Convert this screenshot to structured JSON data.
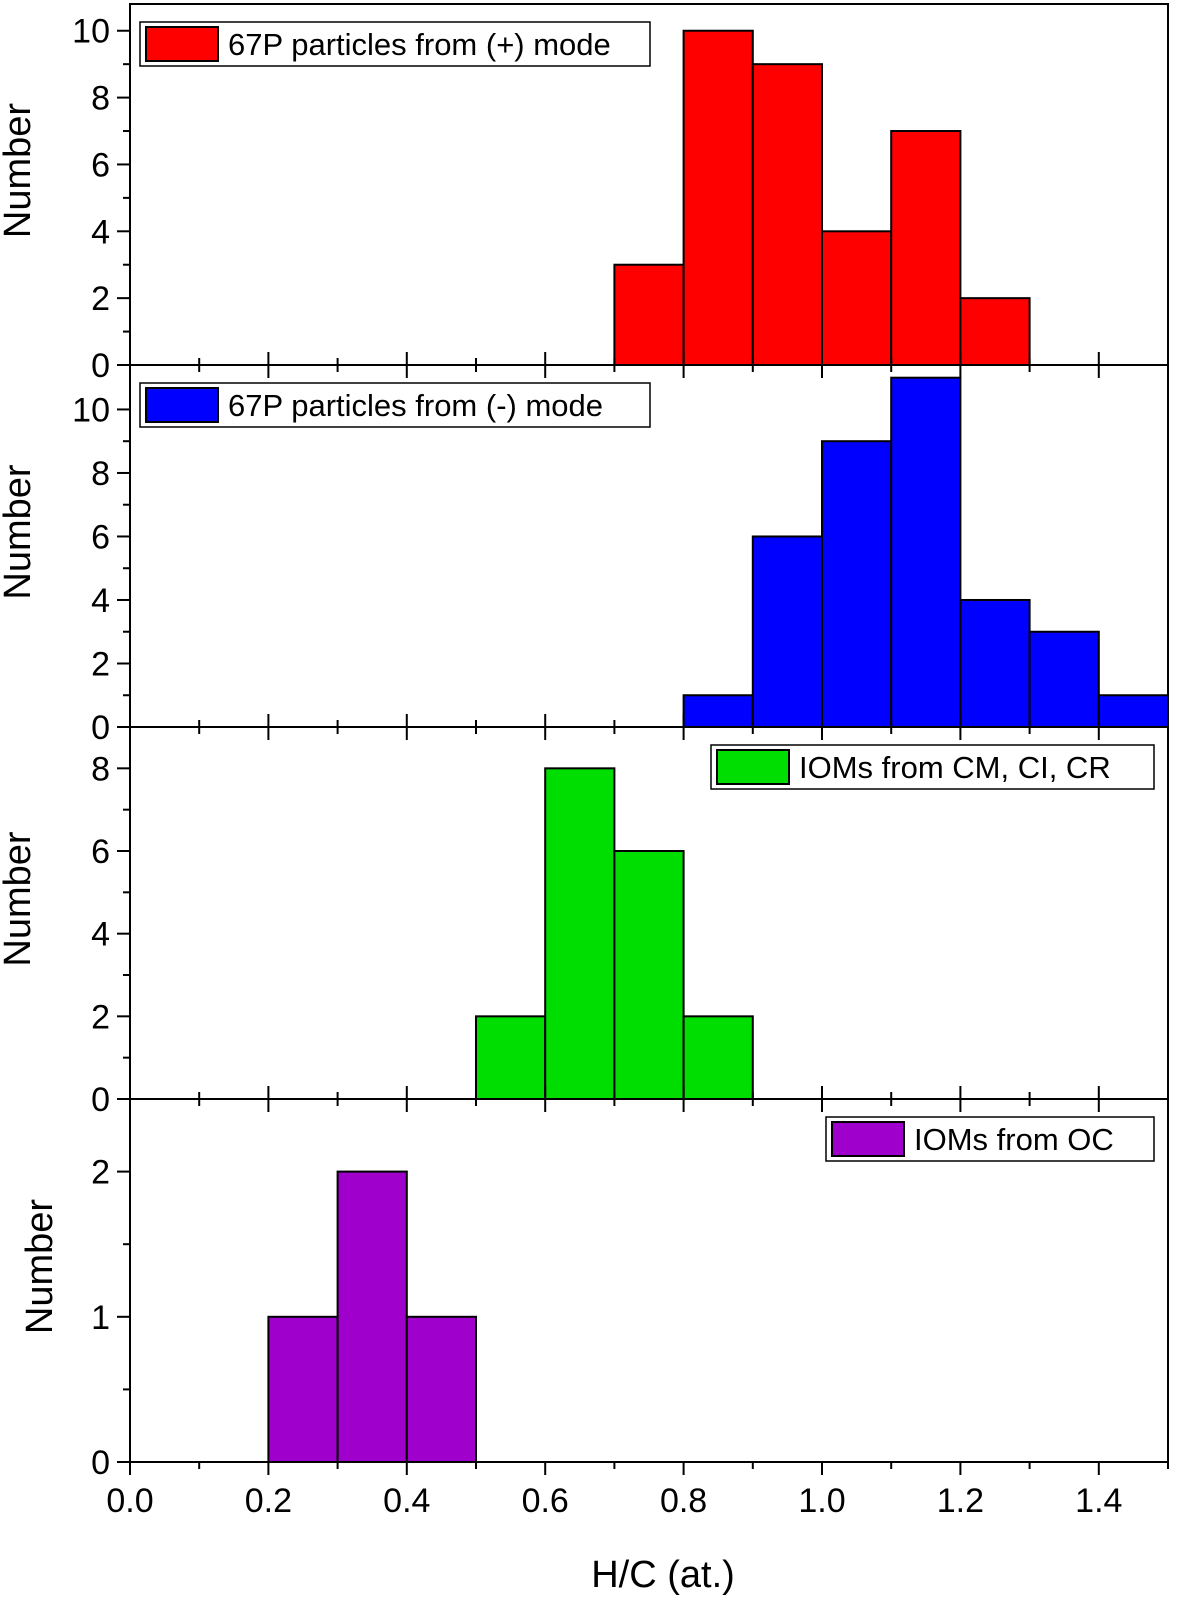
{
  "chart_data": {
    "type": "bar",
    "layout": "stacked-panels",
    "xlabel": "H/C (at.)",
    "xlim": [
      0.0,
      1.5
    ],
    "x_ticks": [
      0.0,
      0.2,
      0.4,
      0.6,
      0.8,
      1.0,
      1.2,
      1.4
    ],
    "x_tick_labels": [
      "0.0",
      "0.2",
      "0.4",
      "0.6",
      "0.8",
      "1.0",
      "1.2",
      "1.4"
    ],
    "bin_width": 0.1,
    "panels": [
      {
        "ylabel": "Number",
        "ylim": [
          0,
          10.8
        ],
        "y_ticks": [
          0,
          2,
          4,
          6,
          8,
          10
        ],
        "y_tick_labels": [
          "0",
          "2",
          "4",
          "6",
          "8",
          "10"
        ],
        "legend": "67P particles from (+) mode",
        "legend_position": "top-left",
        "color": "#ff0000",
        "bins": [
          {
            "start": 0.7,
            "value": 3
          },
          {
            "start": 0.8,
            "value": 10
          },
          {
            "start": 0.9,
            "value": 9
          },
          {
            "start": 1.0,
            "value": 4
          },
          {
            "start": 1.1,
            "value": 7
          },
          {
            "start": 1.2,
            "value": 2
          }
        ]
      },
      {
        "ylabel": "Number",
        "ylim": [
          0,
          11.4
        ],
        "y_ticks": [
          0,
          2,
          4,
          6,
          8,
          10
        ],
        "y_tick_labels": [
          "0",
          "2",
          "4",
          "6",
          "8",
          "10"
        ],
        "legend": "67P particles from (-) mode",
        "legend_position": "top-left",
        "color": "#0000ff",
        "bins": [
          {
            "start": 0.8,
            "value": 1
          },
          {
            "start": 0.9,
            "value": 6
          },
          {
            "start": 1.0,
            "value": 9
          },
          {
            "start": 1.1,
            "value": 11
          },
          {
            "start": 1.2,
            "value": 4
          },
          {
            "start": 1.3,
            "value": 3
          },
          {
            "start": 1.4,
            "value": 1
          }
        ]
      },
      {
        "ylabel": "Number",
        "ylim": [
          0,
          9
        ],
        "y_ticks": [
          0,
          2,
          4,
          6,
          8
        ],
        "y_tick_labels": [
          "0",
          "2",
          "4",
          "6",
          "8"
        ],
        "legend": "IOMs from CM, CI, CR",
        "legend_position": "top-right",
        "color": "#00dd00",
        "bins": [
          {
            "start": 0.5,
            "value": 2
          },
          {
            "start": 0.6,
            "value": 8
          },
          {
            "start": 0.7,
            "value": 6
          },
          {
            "start": 0.8,
            "value": 2
          }
        ]
      },
      {
        "ylabel": "Number",
        "ylim": [
          0,
          2.5
        ],
        "y_ticks": [
          0,
          1,
          2
        ],
        "y_tick_labels": [
          "0",
          "1",
          "2"
        ],
        "legend": "IOMs from OC",
        "legend_position": "top-right",
        "color": "#a000cc",
        "bins": [
          {
            "start": 0.2,
            "value": 1
          },
          {
            "start": 0.3,
            "value": 2
          },
          {
            "start": 0.4,
            "value": 1
          }
        ]
      }
    ]
  }
}
